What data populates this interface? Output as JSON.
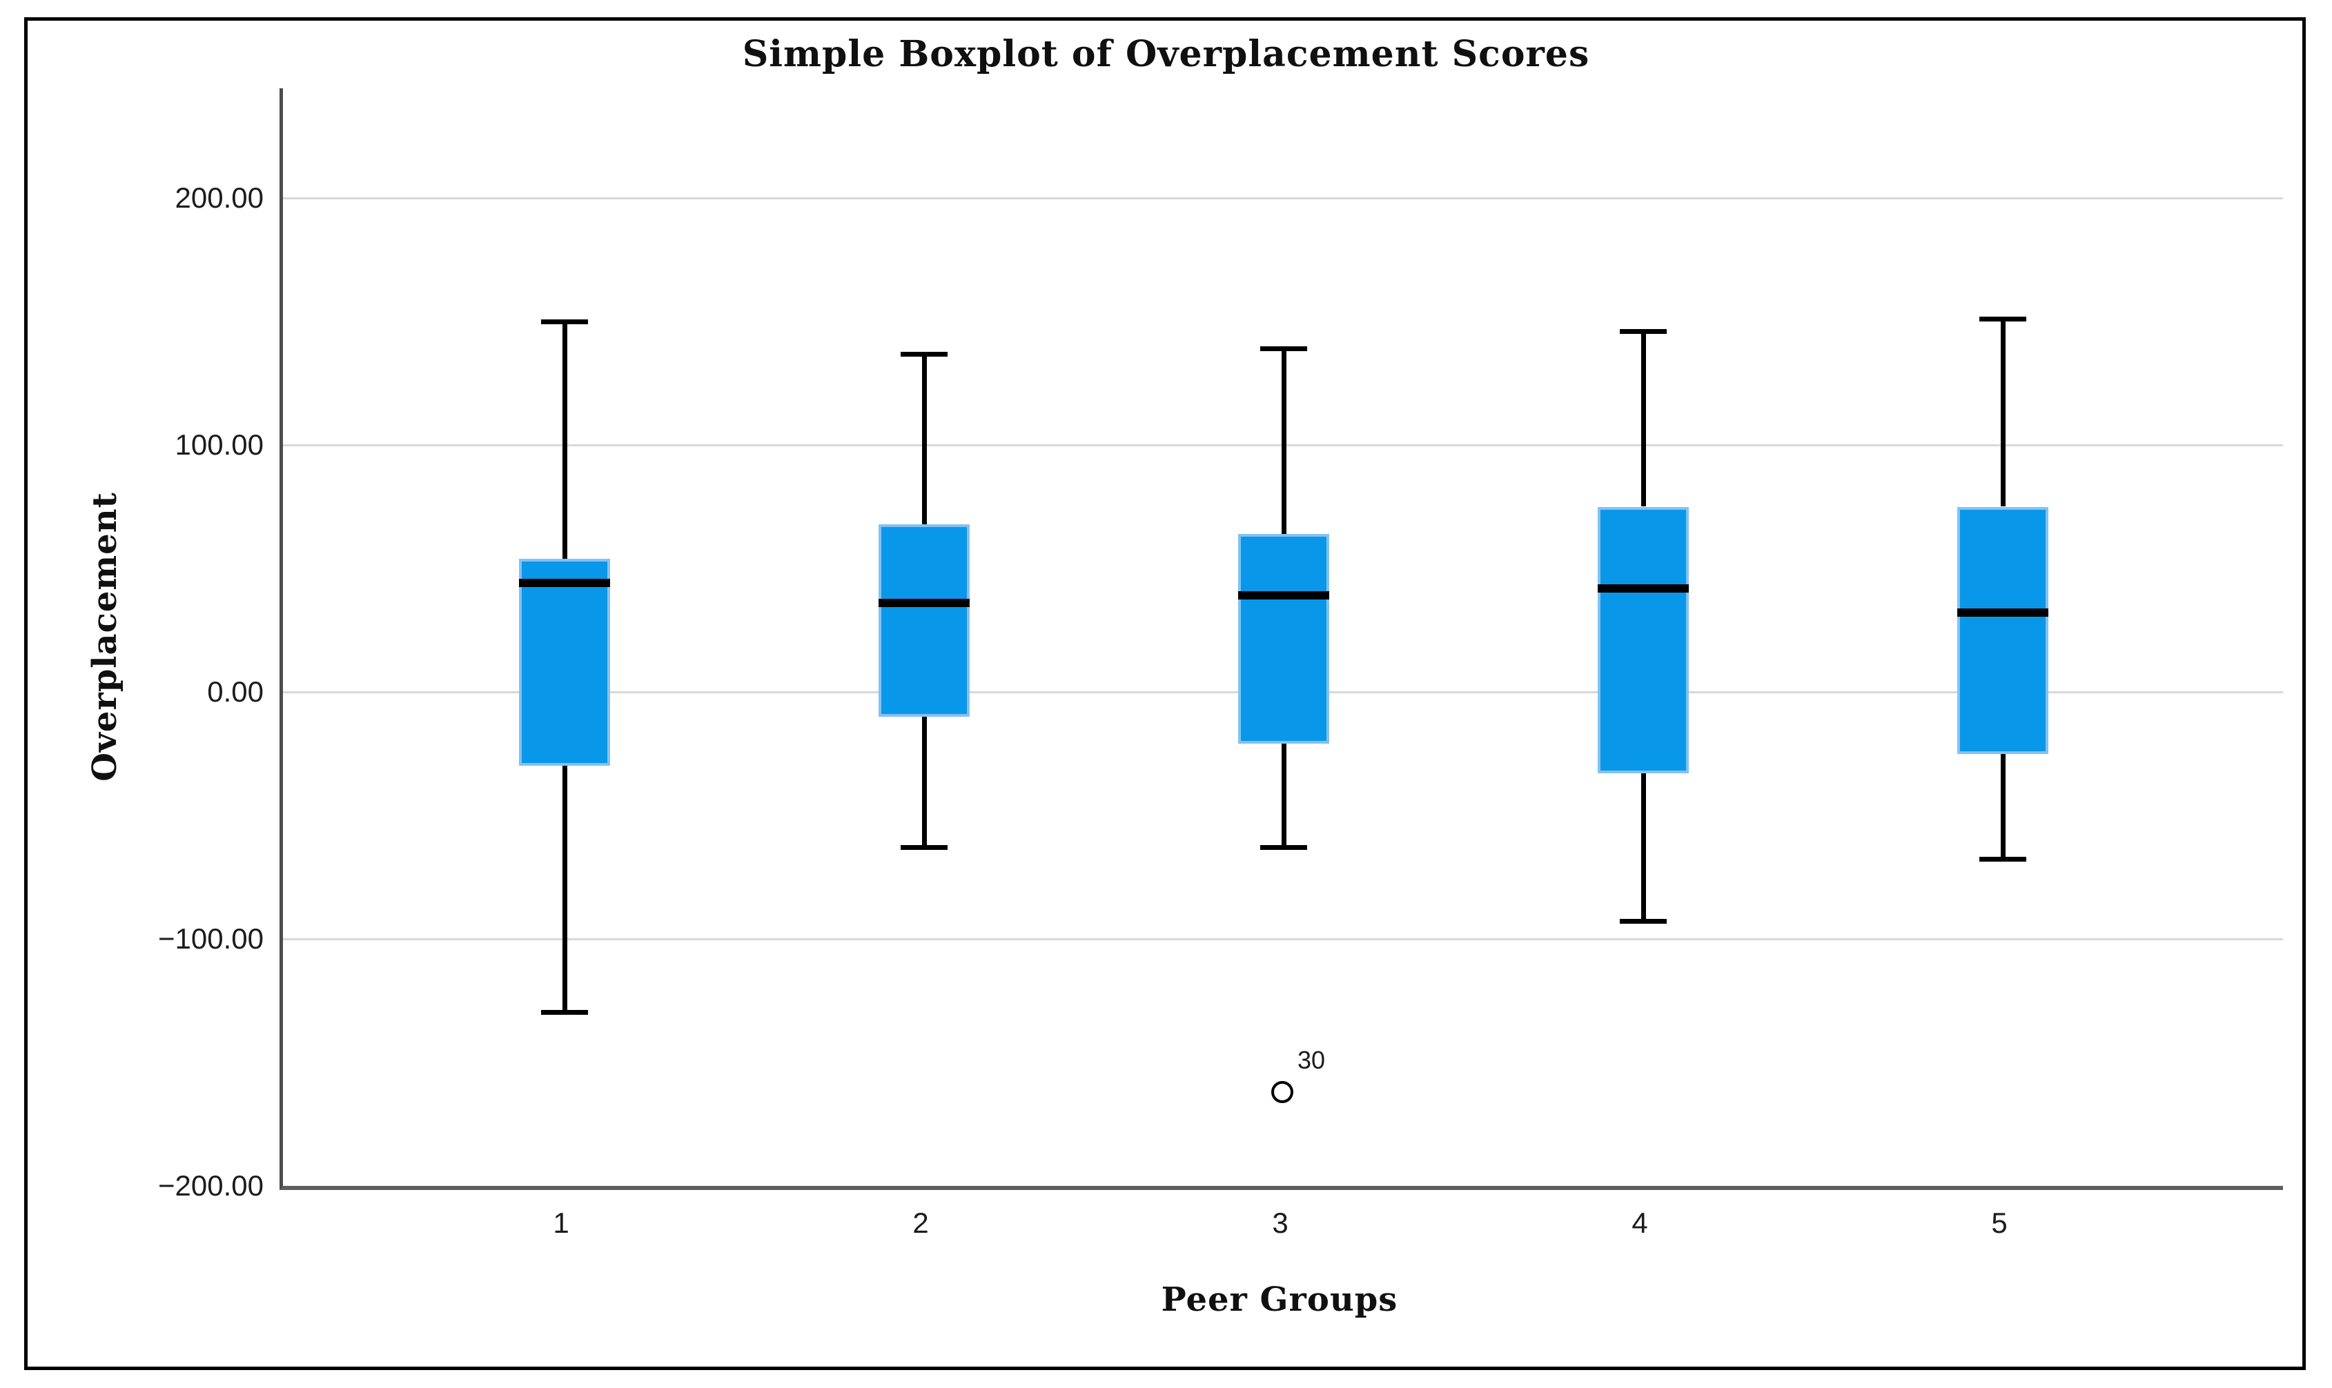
{
  "title": "Simple Boxplot of Overplacement Scores",
  "y_axis": {
    "title": "Overplacement",
    "tick_labels": [
      "200.00",
      "100.00",
      "0.00",
      "−100.00",
      "−200.00"
    ],
    "tick_values": [
      200,
      100,
      0,
      -100,
      -200
    ]
  },
  "x_axis": {
    "title": "Peer Groups",
    "tick_labels": [
      "1",
      "2",
      "3",
      "4",
      "5"
    ]
  },
  "chart_data": {
    "type": "boxplot",
    "title": "Simple Boxplot of Overplacement Scores",
    "xlabel": "Peer Groups",
    "ylabel": "Overplacement",
    "categories": [
      "1",
      "2",
      "3",
      "4",
      "5"
    ],
    "series": [
      {
        "group": "1",
        "whisker_low": -130,
        "q1": -30,
        "median": 44,
        "q3": 54,
        "whisker_high": 150
      },
      {
        "group": "2",
        "whisker_low": -63,
        "q1": -10,
        "median": 36,
        "q3": 68,
        "whisker_high": 137
      },
      {
        "group": "3",
        "whisker_low": -63,
        "q1": -21,
        "median": 39,
        "q3": 64,
        "whisker_high": 139
      },
      {
        "group": "4",
        "whisker_low": -93,
        "q1": -33,
        "median": 42,
        "q3": 75,
        "whisker_high": 146
      },
      {
        "group": "5",
        "whisker_low": -68,
        "q1": -25,
        "median": 32,
        "q3": 75,
        "whisker_high": 151
      }
    ],
    "outliers": [
      {
        "group": "3",
        "value": -162,
        "label": "30"
      }
    ],
    "ylim": [
      -200,
      244
    ],
    "gridline_values": [
      200,
      100,
      0,
      -100
    ],
    "grid": true,
    "legend": false
  },
  "colors": {
    "box_fill": "#0997e9",
    "box_border": "#85c1f2",
    "median": "#000000",
    "whisker": "#000000",
    "outlier_stroke": "#000000",
    "gridline": "#d8d8d8",
    "y_axis_line": "#4d4d4d",
    "x_axis_line": "#5e5e5e",
    "frame_border": "#000000",
    "text": "#101010"
  }
}
